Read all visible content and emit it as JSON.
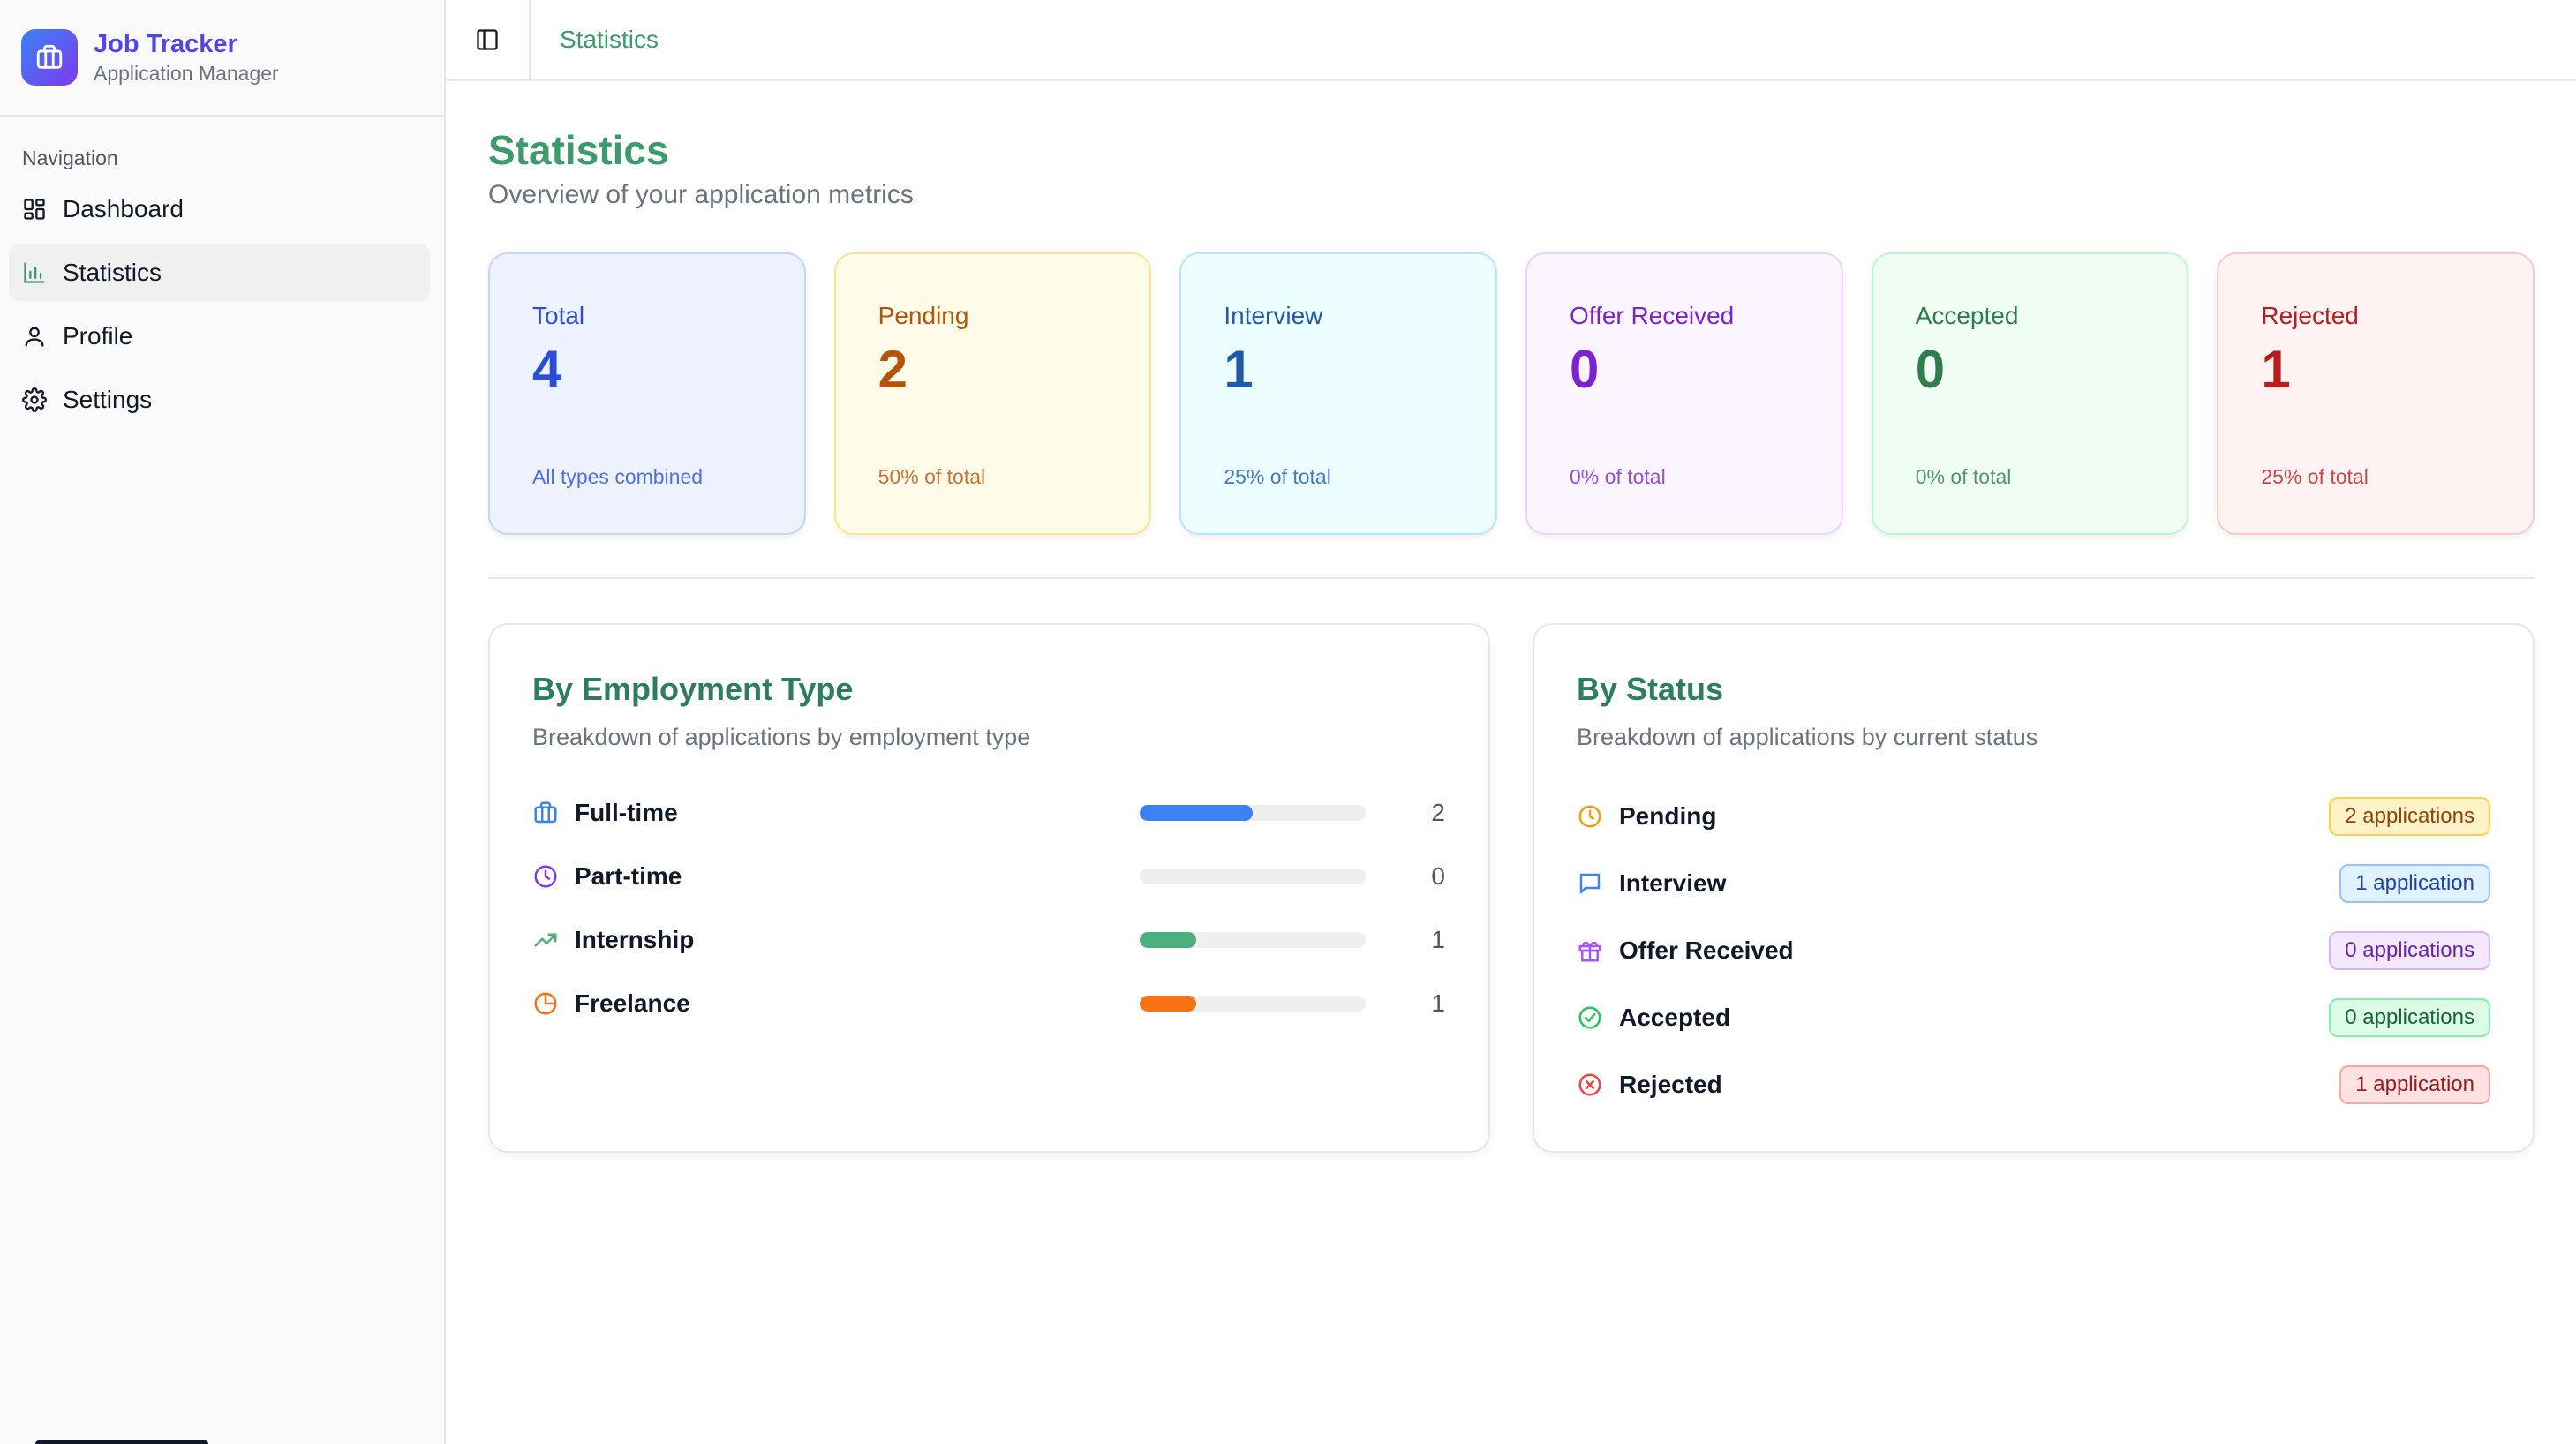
{
  "brand": {
    "title": "Job Tracker",
    "subtitle": "Application Manager"
  },
  "nav": {
    "label": "Navigation",
    "items": [
      {
        "label": "Dashboard",
        "icon": "grid-icon"
      },
      {
        "label": "Statistics",
        "icon": "bar-chart-icon",
        "active": true
      },
      {
        "label": "Profile",
        "icon": "user-icon"
      },
      {
        "label": "Settings",
        "icon": "gear-icon"
      }
    ]
  },
  "header": {
    "breadcrumb": "Statistics"
  },
  "page": {
    "title": "Statistics",
    "subtitle": "Overview of your application metrics"
  },
  "stats": [
    {
      "label": "Total",
      "value": "4",
      "note": "All types combined",
      "color": "#2b4fd4",
      "bg": "#eef2ff",
      "border": "#c7d2fe"
    },
    {
      "label": "Pending",
      "value": "2",
      "note": "50% of total",
      "color": "#b45309",
      "bg": "#fefce8",
      "border": "#fde68a"
    },
    {
      "label": "Interview",
      "value": "1",
      "note": "25% of total",
      "color": "#1e5aa8",
      "bg": "#ecfeff",
      "border": "#bae6fd"
    },
    {
      "label": "Offer Received",
      "value": "0",
      "note": "0% of total",
      "color": "#7e22ce",
      "bg": "#faf5ff",
      "border": "#e9d5ff"
    },
    {
      "label": "Accepted",
      "value": "0",
      "note": "0% of total",
      "color": "#2e7d4a",
      "bg": "#f0fdf4",
      "border": "#bbf7d0"
    },
    {
      "label": "Rejected",
      "value": "1",
      "note": "25% of total",
      "color": "#b91c1c",
      "bg": "#fef2f2",
      "border": "#fecaca"
    }
  ],
  "employment": {
    "title": "By Employment Type",
    "subtitle": "Breakdown of applications by employment type",
    "items": [
      {
        "label": "Full-time",
        "count": "2",
        "fraction": 0.5,
        "color": "#3b82f6",
        "icon": "briefcase-icon"
      },
      {
        "label": "Part-time",
        "count": "0",
        "fraction": 0,
        "color": "#7c3aed",
        "icon": "clock-icon"
      },
      {
        "label": "Internship",
        "count": "1",
        "fraction": 0.25,
        "color": "#4caf7d",
        "icon": "trending-up-icon"
      },
      {
        "label": "Freelance",
        "count": "1",
        "fraction": 0.25,
        "color": "#f97316",
        "icon": "pie-chart-icon"
      }
    ]
  },
  "status": {
    "title": "By Status",
    "subtitle": "Breakdown of applications by current status",
    "items": [
      {
        "label": "Pending",
        "badge": "2 applications",
        "icon": "clock-icon",
        "color": "#f59e0b",
        "text": "#92400e",
        "bg": "#fef3c7",
        "border": "#fcd34d"
      },
      {
        "label": "Interview",
        "badge": "1 application",
        "icon": "message-icon",
        "color": "#3b82f6",
        "text": "#1e40af",
        "bg": "#e0f2fe",
        "border": "#93c5fd"
      },
      {
        "label": "Offer Received",
        "badge": "0 applications",
        "icon": "gift-icon",
        "color": "#a855f7",
        "text": "#6b21a8",
        "bg": "#f3e8ff",
        "border": "#d8b4fe"
      },
      {
        "label": "Accepted",
        "badge": "0 applications",
        "icon": "check-circle-icon",
        "color": "#22c55e",
        "text": "#166534",
        "bg": "#dcfce7",
        "border": "#86efac"
      },
      {
        "label": "Rejected",
        "badge": "1 application",
        "icon": "x-circle-icon",
        "color": "#ef4444",
        "text": "#991b1b",
        "bg": "#fee2e2",
        "border": "#fca5a5"
      }
    ]
  }
}
